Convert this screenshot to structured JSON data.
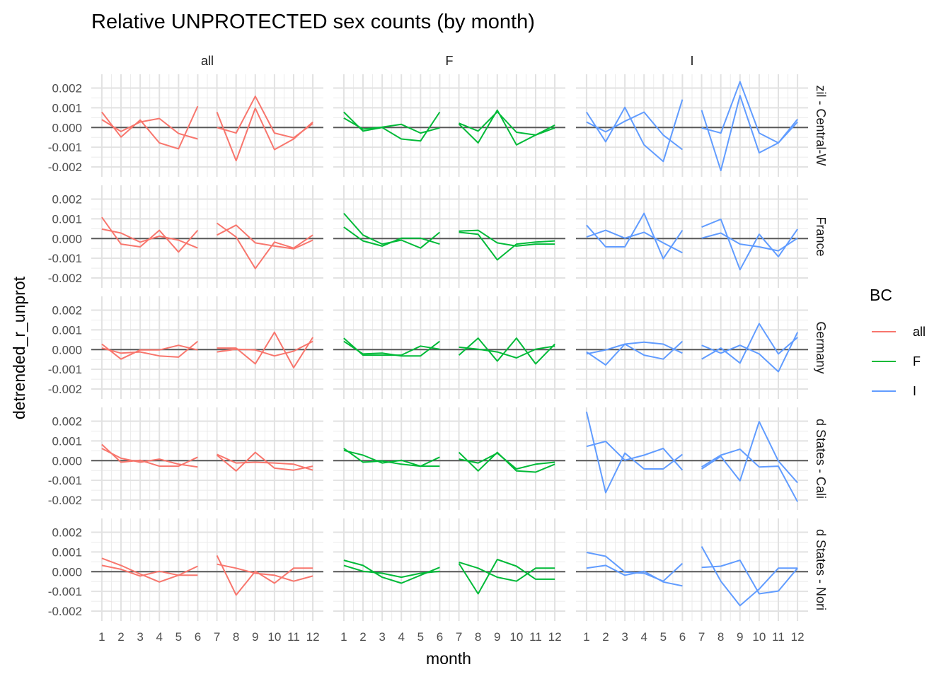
{
  "chart_data": {
    "type": "line",
    "title": "Relative UNPROTECTED sex counts (by month)",
    "xlabel": "month",
    "ylabel": "detrended_r_unprot",
    "x": [
      1,
      2,
      3,
      4,
      5,
      6,
      7,
      8,
      9,
      10,
      11,
      12
    ],
    "x_tick_labels": [
      "1",
      "2",
      "3",
      "4",
      "5",
      "6",
      "7",
      "8",
      "9",
      "10",
      "11",
      "12"
    ],
    "y_ticks": [
      0.002,
      0.001,
      0.0,
      -0.001,
      -0.002
    ],
    "y_tick_labels": [
      "0.002",
      "0.001",
      "0.000",
      "-0.001",
      "-0.002"
    ],
    "ylim": [
      -0.0025,
      0.0027
    ],
    "xlim": [
      0.45,
      12.55
    ],
    "reference_line_y": 0,
    "grid": true,
    "column_facets": [
      "all",
      "F",
      "I"
    ],
    "row_facets": [
      "zil - Central-W",
      "France",
      "Germany",
      "d States - Cali",
      "d States - Nori"
    ],
    "legend": {
      "title": "BC",
      "position": "right",
      "entries": [
        {
          "label": "all",
          "color": "#F8766D"
        },
        {
          "label": "F",
          "color": "#00BA38"
        },
        {
          "label": "I",
          "color": "#619CFF"
        }
      ]
    },
    "panels": [
      [
        {
          "lines": [
            [
              0.00078,
              -0.00048,
              0.00038,
              -0.00078,
              -0.00108,
              0.00108
            ],
            [
              0.0004,
              -0.0002,
              0.00028,
              0.00046,
              -0.0003,
              -0.00058
            ],
            [
              0.00078,
              -0.00168,
              0.00098,
              -0.00112,
              -0.00058,
              0.00028
            ],
            [
              0.0,
              -0.00028,
              0.00158,
              -0.00028,
              -0.00052,
              0.0002
            ]
          ]
        },
        {
          "lines": [
            [
              0.00078,
              -0.00018,
              0.0,
              -0.00058,
              -0.00068,
              0.00078
            ],
            [
              0.00048,
              -8e-05,
              2e-05,
              0.00016,
              -0.00028,
              -2e-05
            ],
            [
              0.00018,
              -0.00078,
              0.00088,
              -0.00088,
              -0.00038,
              0.00012
            ],
            [
              0.00022,
              -0.00018,
              0.0008,
              -0.00024,
              -0.00038,
              -2e-05
            ]
          ]
        },
        {
          "lines": [
            [
              0.00078,
              -0.00072,
              0.00102,
              -0.00088,
              -0.00172,
              0.00142
            ],
            [
              0.00028,
              -0.00022,
              0.00032,
              0.00078,
              -0.00038,
              -0.00112
            ],
            [
              0.00088,
              -0.00218,
              0.00162,
              -0.00128,
              -0.00078,
              0.00042
            ],
            [
              -2e-05,
              -0.00028,
              0.00232,
              -0.00028,
              -0.00078,
              0.00028
            ]
          ]
        }
      ],
      [
        {
          "lines": [
            [
              0.00108,
              -0.00028,
              -0.00042,
              0.00042,
              -0.00068,
              0.00042
            ],
            [
              0.00048,
              0.00028,
              -0.00018,
              0.00012,
              -8e-05,
              -0.00048
            ],
            [
              0.00078,
              8e-05,
              -0.00152,
              -0.00018,
              -0.00048,
              0.00018
            ],
            [
              0.00018,
              0.00068,
              -0.00022,
              -0.00038,
              -0.00052,
              -8e-05
            ]
          ]
        },
        {
          "lines": [
            [
              0.00128,
              0.00018,
              -0.00028,
              -8e-05,
              -0.00048,
              0.00032
            ],
            [
              0.00058,
              -0.00012,
              -0.00038,
              2e-05,
              2e-05,
              -0.00028
            ],
            [
              0.00032,
              0.00022,
              -0.00108,
              -0.00028,
              -0.00018,
              -0.00012
            ],
            [
              0.00038,
              0.00042,
              -0.00022,
              -0.00038,
              -0.00028,
              -0.00028
            ]
          ]
        },
        {
          "lines": [
            [
              0.00068,
              -0.00042,
              -0.00042,
              0.00128,
              -0.00102,
              0.00042
            ],
            [
              8e-05,
              0.00042,
              2e-05,
              0.00032,
              -0.00022,
              -0.00072
            ],
            [
              0.00058,
              0.00098,
              -0.00158,
              0.00022,
              -0.00092,
              0.00048
            ],
            [
              2e-05,
              0.00028,
              -0.00028,
              -0.00042,
              -0.00062,
              2e-05
            ]
          ]
        }
      ],
      [
        {
          "lines": [
            [
              0.00028,
              -0.00048,
              -2e-05,
              -2e-05,
              0.00022,
              -2e-05
            ],
            [
              8e-05,
              -0.00018,
              -0.00012,
              -0.00032,
              -0.00038,
              0.00042
            ],
            [
              8e-05,
              8e-05,
              -0.00072,
              0.00088,
              -0.00092,
              0.00062
            ],
            [
              -0.00012,
              2e-05,
              -2e-05,
              -0.00032,
              -8e-05,
              0.00042
            ]
          ]
        },
        {
          "lines": [
            [
              0.00058,
              -0.00028,
              -0.00028,
              -0.00028,
              0.00018,
              2e-05
            ],
            [
              0.00042,
              -0.00022,
              -0.00018,
              -0.00032,
              -0.00032,
              0.00042
            ],
            [
              -0.00028,
              0.00058,
              -0.00058,
              0.00058,
              -0.00072,
              0.00028
            ],
            [
              0.00012,
              2e-05,
              -0.00012,
              -0.00042,
              2e-05,
              0.00018
            ]
          ]
        },
        {
          "lines": [
            [
              -0.00012,
              -0.00078,
              0.00028,
              0.00038,
              0.00028,
              -0.00018
            ],
            [
              -0.00022,
              -2e-05,
              0.00028,
              -0.00028,
              -0.00048,
              0.00042
            ],
            [
              0.00022,
              -0.00018,
              0.00022,
              -0.00022,
              -0.00112,
              0.00088
            ],
            [
              -0.00048,
              8e-05,
              -0.00068,
              0.00132,
              -0.00022,
              0.00062
            ]
          ]
        }
      ],
      [
        {
          "lines": [
            [
              0.00082,
              -8e-05,
              2e-05,
              -0.00028,
              -0.00028,
              0.00018
            ],
            [
              0.00062,
              0.00012,
              -8e-05,
              8e-05,
              -0.00018,
              -0.00032
            ],
            [
              0.00028,
              -0.00052,
              0.00042,
              -0.00038,
              -0.00048,
              -0.00028
            ],
            [
              0.00032,
              -0.00012,
              -8e-05,
              -0.00012,
              -0.00018,
              -0.00048
            ]
          ]
        },
        {
          "lines": [
            [
              0.00062,
              -8e-05,
              -2e-05,
              -0.00018,
              -0.00028,
              0.00018
            ],
            [
              0.00052,
              0.00028,
              -0.00012,
              2e-05,
              -0.00028,
              -0.00028
            ],
            [
              0.00042,
              -0.00052,
              0.00042,
              -0.00052,
              -0.00058,
              -0.00018
            ],
            [
              8e-05,
              -0.00012,
              0.00038,
              -0.00042,
              -0.00018,
              -8e-05
            ]
          ]
        },
        {
          "lines": [
            [
              0.00248,
              -0.00162,
              0.00038,
              -0.00042,
              -0.00042,
              0.00032
            ],
            [
              0.00072,
              0.00098,
              2e-05,
              0.00028,
              0.00062,
              -0.00048
            ],
            [
              -0.00042,
              0.00022,
              -0.00102,
              0.00198,
              -2e-05,
              -0.00112
            ],
            [
              -0.00032,
              0.00028,
              0.00058,
              -0.00032,
              -0.00028,
              -0.00208
            ]
          ]
        }
      ],
      [
        {
          "lines": [
            [
              0.00068,
              0.00032,
              -0.00012,
              -0.00052,
              -0.00018,
              0.00028
            ],
            [
              0.00032,
              0.00012,
              -0.00022,
              2e-05,
              -0.00018,
              -0.00018
            ],
            [
              0.00082,
              -0.00118,
              2e-05,
              -0.00058,
              0.00018,
              0.00018
            ],
            [
              0.00038,
              0.00018,
              -8e-05,
              -0.00018,
              -0.00048,
              -0.00022
            ]
          ]
        },
        {
          "lines": [
            [
              0.00058,
              0.00032,
              -0.00028,
              -0.00058,
              -0.00018,
              0.00022
            ],
            [
              0.00032,
              2e-05,
              -8e-05,
              -0.00028,
              -8e-05,
              2e-05
            ],
            [
              0.00042,
              -0.00112,
              0.00062,
              0.00028,
              -0.00038,
              -0.00038
            ],
            [
              0.00048,
              0.00018,
              -0.00028,
              -0.00048,
              0.00018,
              0.00018
            ]
          ]
        },
        {
          "lines": [
            [
              0.00098,
              0.00078,
              -2e-05,
              -8e-05,
              -0.00048,
              0.00042
            ],
            [
              0.00018,
              0.00032,
              -0.00018,
              2e-05,
              -0.00052,
              -0.00072
            ],
            [
              0.00128,
              -0.00048,
              -0.00172,
              -0.00088,
              0.00018,
              0.00018
            ],
            [
              0.00022,
              0.00028,
              0.00058,
              -0.00112,
              -0.00098,
              0.00018
            ]
          ]
        }
      ]
    ]
  }
}
